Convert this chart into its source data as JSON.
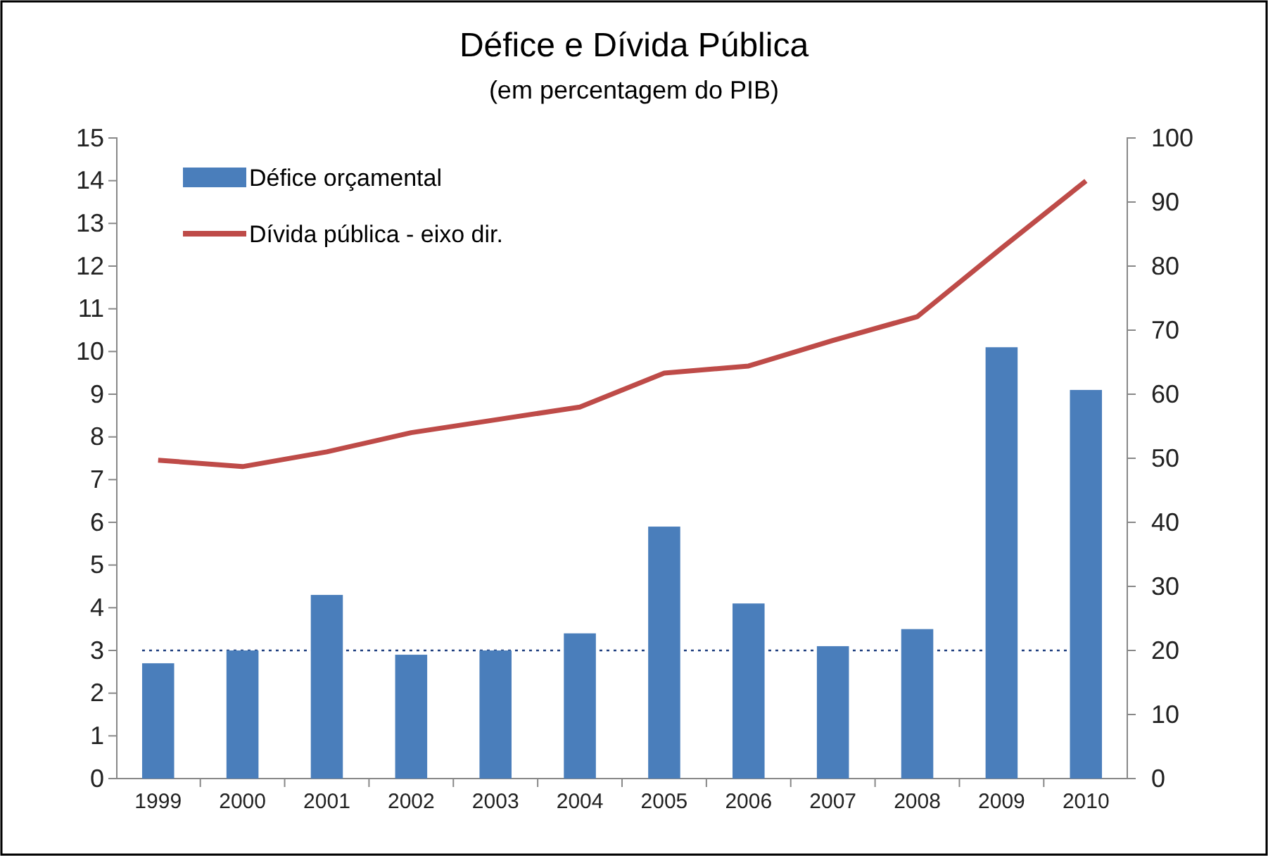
{
  "chart_data": {
    "type": "bar",
    "title": "Défice e Dívida Pública",
    "subtitle": "(em percentagem do PIB)",
    "categories": [
      "1999",
      "2000",
      "2001",
      "2002",
      "2003",
      "2004",
      "2005",
      "2006",
      "2007",
      "2008",
      "2009",
      "2010"
    ],
    "series": [
      {
        "name": "Défice orçamental",
        "color": "#4a7ebb",
        "values": [
          2.7,
          3.0,
          4.3,
          2.9,
          3.0,
          3.4,
          5.9,
          4.1,
          3.1,
          3.5,
          10.1,
          9.1
        ]
      },
      {
        "name": "Dívida pública - eixo dir.",
        "type": "line",
        "axis": "y2",
        "color": "#be4b48",
        "values": [
          49.7,
          48.7,
          51,
          54,
          56,
          58,
          63.3,
          64.4,
          68.4,
          72.1,
          82.8,
          93.3
        ]
      }
    ],
    "ylim": [
      0,
      15
    ],
    "yticks": [
      0,
      1,
      2,
      3,
      4,
      5,
      6,
      7,
      8,
      9,
      10,
      11,
      12,
      13,
      14,
      15
    ],
    "y2lim": [
      0,
      100
    ],
    "y2ticks": [
      0,
      10,
      20,
      30,
      40,
      50,
      60,
      70,
      80,
      90,
      100
    ],
    "ref_lines": [
      {
        "axis": "y",
        "value": 3,
        "color": "#1f3f7f",
        "line_style": "dotted"
      }
    ],
    "legend": "top left",
    "marker": "none",
    "line_style": "solid"
  }
}
